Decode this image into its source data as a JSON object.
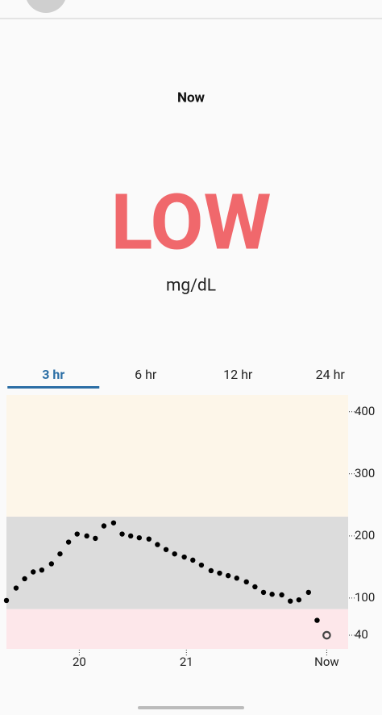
{
  "header": {
    "title": "Now"
  },
  "reading": {
    "value": "LOW",
    "unit": "mg/dL",
    "color": "#f0686c"
  },
  "tabs": [
    "3 hr",
    "6 hr",
    "12 hr",
    "24 hr"
  ],
  "selected_tab": 0,
  "chart_data": {
    "type": "scatter",
    "bands": [
      {
        "from": 231,
        "to": 427,
        "color": "#fdf6e9"
      },
      {
        "from": 82,
        "to": 231,
        "color": "#dcdcdc"
      },
      {
        "from": 18,
        "to": 82,
        "color": "#fde7ea"
      }
    ],
    "series": [
      {
        "color": "#000000",
        "marker": "filled",
        "x": [
          19.32,
          19.41,
          19.49,
          19.57,
          19.65,
          19.74,
          19.82,
          19.9,
          19.98,
          20.07,
          20.15,
          20.23,
          20.32,
          20.4,
          20.48,
          20.56,
          20.65,
          20.73,
          20.81,
          20.89,
          20.98,
          21.06,
          21.14,
          21.23,
          21.31,
          21.39,
          21.47,
          21.56,
          21.64,
          21.72,
          21.8,
          21.89,
          21.97,
          22.05,
          22.14,
          22.22
        ],
        "values": [
          96,
          116,
          131,
          142,
          145,
          155,
          171,
          190,
          203,
          200,
          196,
          216,
          221,
          203,
          200,
          197,
          195,
          186,
          178,
          171,
          166,
          161,
          153,
          144,
          140,
          136,
          132,
          126,
          118,
          109,
          106,
          105,
          95,
          97,
          109,
          64
        ]
      },
      {
        "color": "#444444",
        "marker": "open",
        "x": [
          22.31
        ],
        "values": [
          40
        ]
      }
    ],
    "xlim": [
      19.32,
      22.51
    ],
    "xticks": [
      20,
      21,
      {
        "value": 22.31,
        "label": "Now"
      }
    ],
    "ylim": [
      18,
      427
    ],
    "yticks": [
      400,
      300,
      200,
      100,
      40
    ]
  }
}
